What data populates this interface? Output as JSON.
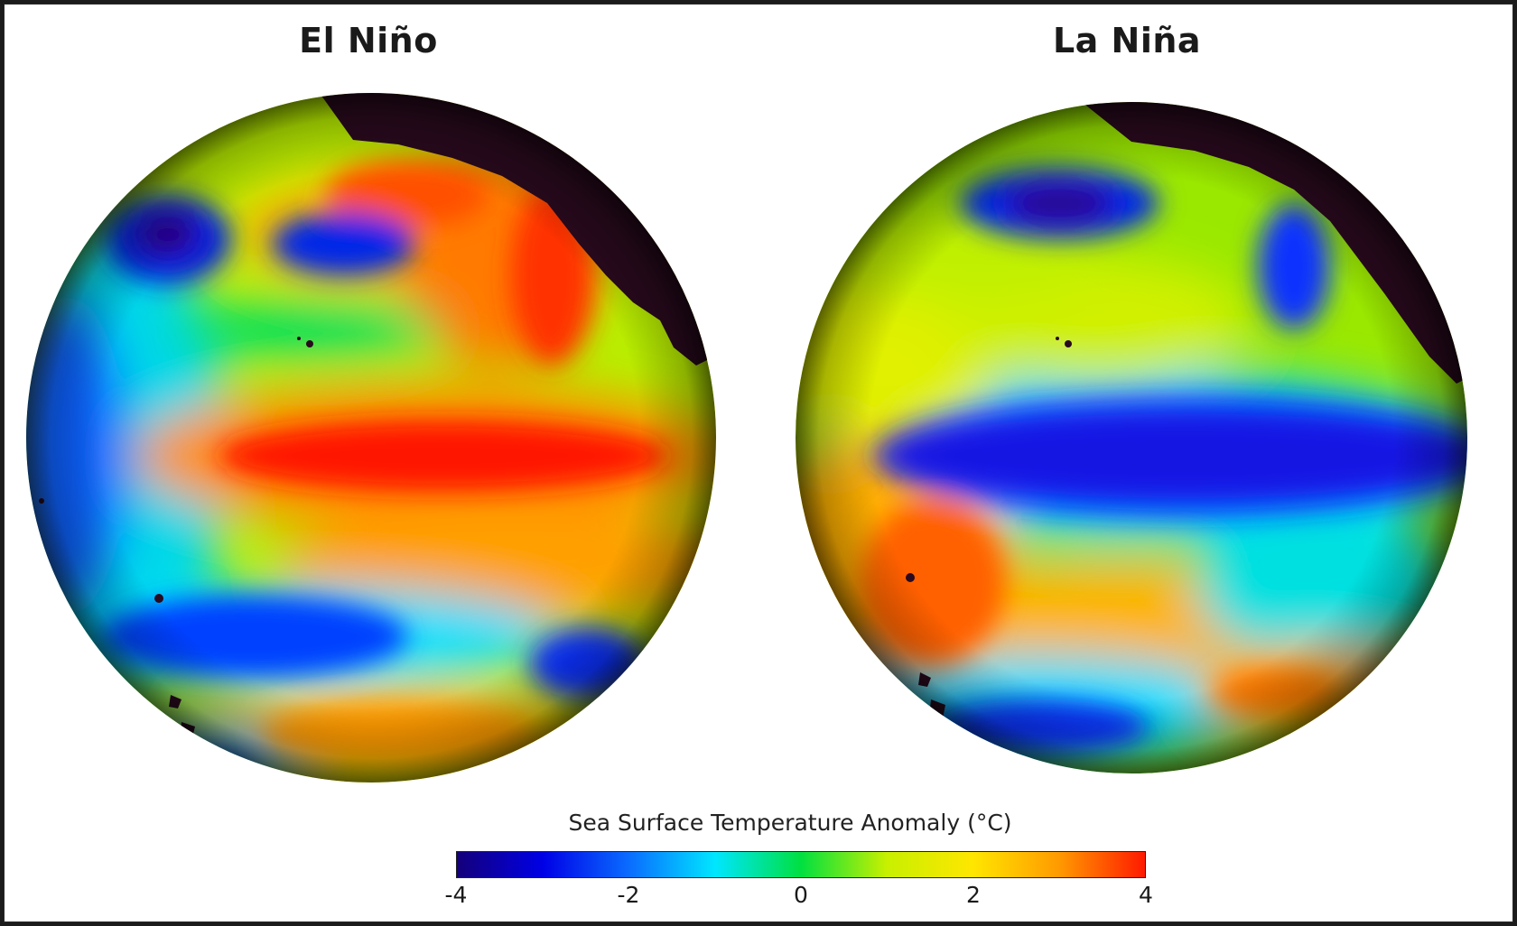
{
  "panels": [
    {
      "title": "El Niño"
    },
    {
      "title": "La Niña"
    }
  ],
  "colorbar": {
    "title": "Sea Surface Temperature Anomaly (°C)",
    "min": -4,
    "max": 4,
    "ticks": [
      "-4",
      "-2",
      "0",
      "2",
      "4"
    ],
    "stops": [
      "#14007a",
      "#0000e6",
      "#0a6cff",
      "#00e6ff",
      "#00e040",
      "#c8f000",
      "#ffe600",
      "#ff9a00",
      "#ff1a00"
    ]
  },
  "colors": {
    "land": "#2a0a1e"
  }
}
